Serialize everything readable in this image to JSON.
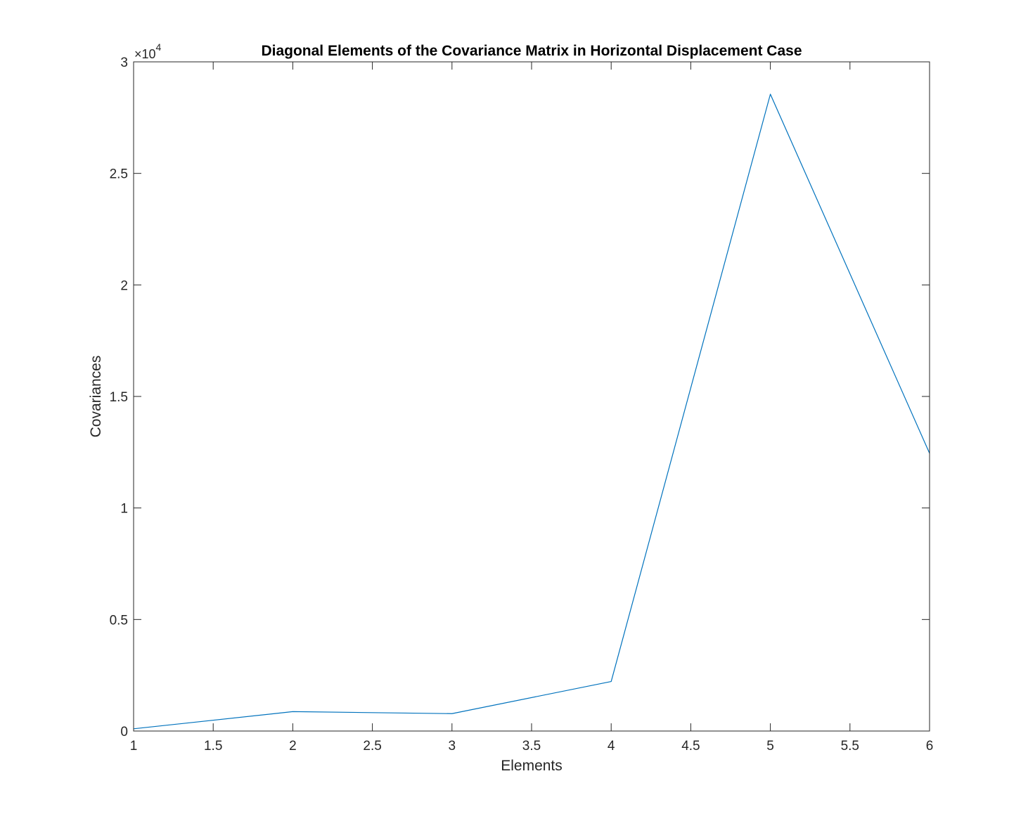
{
  "chart_data": {
    "type": "line",
    "title": "Diagonal Elements of the Covariance Matrix in Horizontal Displacement Case",
    "xlabel": "Elements",
    "ylabel": "Covariances",
    "xlim": [
      1,
      6
    ],
    "ylim": [
      0,
      30000
    ],
    "x_ticks": [
      1,
      1.5,
      2,
      2.5,
      3,
      3.5,
      4,
      4.5,
      5,
      5.5,
      6
    ],
    "x_tick_labels": [
      "1",
      "1.5",
      "2",
      "2.5",
      "3",
      "3.5",
      "4",
      "4.5",
      "5",
      "5.5",
      "6"
    ],
    "y_ticks": [
      0,
      5000,
      10000,
      15000,
      20000,
      25000,
      30000
    ],
    "y_tick_labels": [
      "0",
      "0.5",
      "1",
      "1.5",
      "2",
      "2.5",
      "3"
    ],
    "y_exponent_base": "×10",
    "y_exponent_power": "4",
    "grid": false,
    "series": [
      {
        "x": [
          1,
          2,
          3,
          4,
          5,
          6
        ],
        "values": [
          100,
          870,
          780,
          2220,
          28550,
          12450
        ],
        "color": "#0072BD"
      }
    ]
  }
}
